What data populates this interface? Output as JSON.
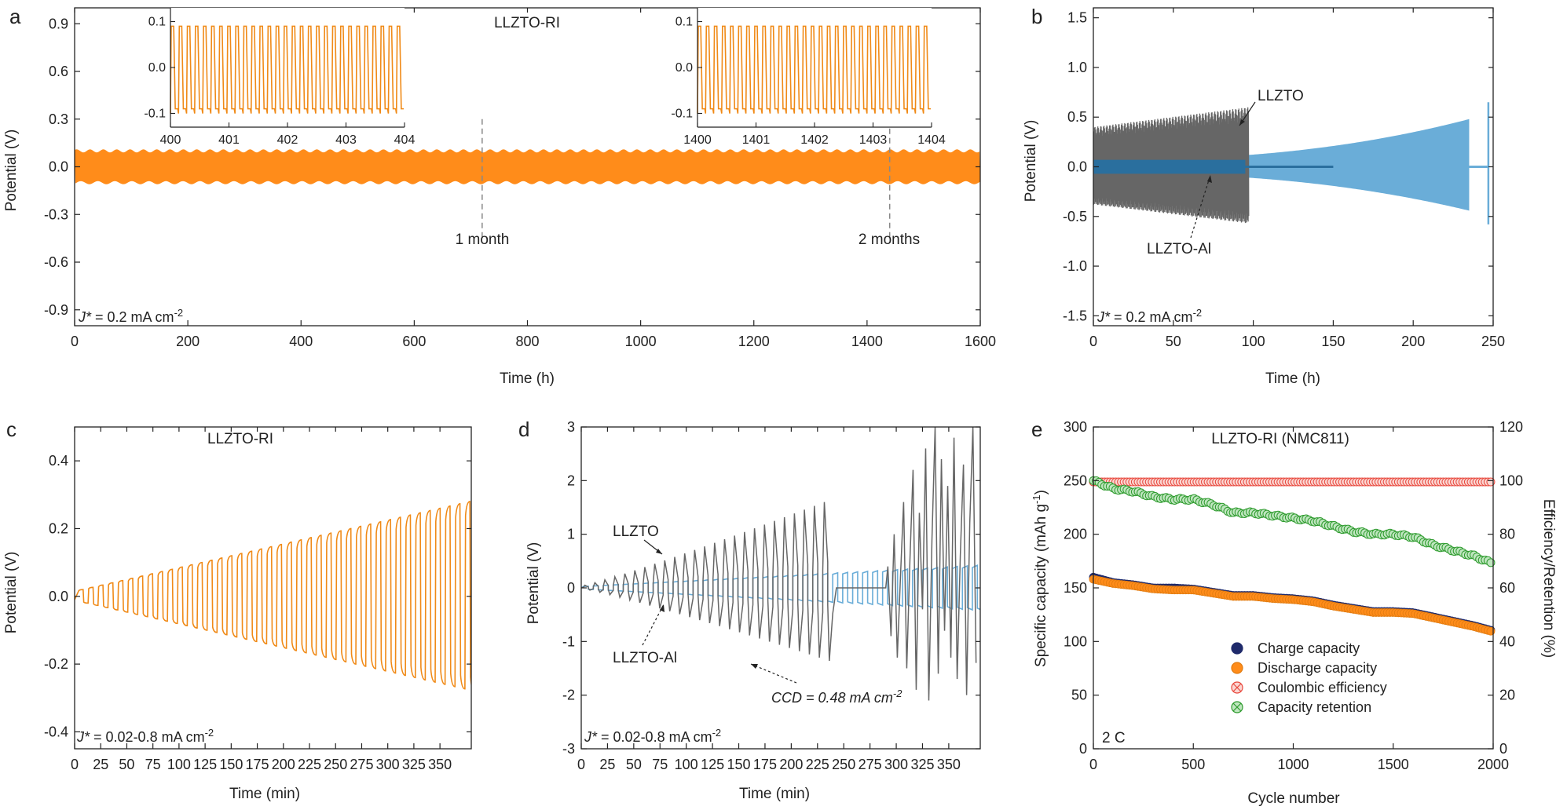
{
  "colors": {
    "orange": "#ff8c1a",
    "orange_trace": "#f08a17",
    "gray": "#666666",
    "dark_blue": "#2a6f9e",
    "light_blue": "#6aadd8",
    "navy": "#1f2a6b",
    "red": "#e8473c",
    "green": "#2e9b2e",
    "dash": "#888888",
    "axis": "#222222"
  },
  "chart_data": [
    {
      "panel": "a",
      "type": "line",
      "title": "LLZTO-RI",
      "xlabel": "Time (h)",
      "ylabel": "Potential (V)",
      "xlim": [
        0,
        1600
      ],
      "ylim": [
        -1.0,
        1.0
      ],
      "xticks": [
        "0",
        "200",
        "400",
        "600",
        "800",
        "1000",
        "1200",
        "1400",
        "1600"
      ],
      "yticks": [
        "-0.9",
        "-0.6",
        "-0.3",
        "0.0",
        "0.3",
        "0.6",
        "0.9"
      ],
      "series": [
        {
          "envelope_upper": 0.1,
          "envelope_lower": -0.1,
          "x_range": [
            0,
            1600
          ]
        }
      ],
      "annotations": [
        "1 month",
        "2 months",
        "J* = 0.2 mA cm⁻²"
      ],
      "marker_lines_x": [
        720,
        1440
      ],
      "insets": [
        {
          "xlim": [
            400,
            404
          ],
          "ylim": [
            -0.13,
            0.13
          ],
          "xticks": [
            "400",
            "401",
            "402",
            "403",
            "404"
          ],
          "yticks": [
            "0.1",
            "0.0",
            "-0.1"
          ],
          "amplitude": 0.09,
          "cycles": 29
        },
        {
          "xlim": [
            1400,
            1404
          ],
          "ylim": [
            -0.13,
            0.13
          ],
          "xticks": [
            "1400",
            "1401",
            "1402",
            "1403",
            "1404"
          ],
          "yticks": [
            "0.1",
            "0.0",
            "-0.1"
          ],
          "amplitude": 0.09,
          "cycles": 29
        }
      ]
    },
    {
      "panel": "b",
      "type": "line",
      "xlabel": "Time (h)",
      "ylabel": "Potential (V)",
      "xlim": [
        0,
        250
      ],
      "ylim": [
        -1.6,
        1.6
      ],
      "xticks": [
        "0",
        "50",
        "100",
        "150",
        "200",
        "250"
      ],
      "yticks": [
        "-1.5",
        "-1.0",
        "-0.5",
        "0.0",
        "0.5",
        "1.0",
        "1.5"
      ],
      "series": [
        {
          "label": "LLZTO",
          "x_end": 97,
          "amplitude_start": 0.4,
          "amplitude_end": 0.6
        },
        {
          "label": "LLZTO-Al",
          "x_end": 150,
          "amplitude": 0.07
        },
        {
          "x_range": [
            0,
            250
          ],
          "amplitude_start": 0.07,
          "amplitude_end": 0.48,
          "spike": 0.65
        }
      ],
      "annotations": [
        "LLZTO",
        "LLZTO-Al",
        "J* = 0.2 mA cm⁻²"
      ]
    },
    {
      "panel": "c",
      "type": "line",
      "title": "LLZTO-RI",
      "xlabel": "Time (min)",
      "ylabel": "Potential (V)",
      "xlim": [
        0,
        380
      ],
      "ylim": [
        -0.45,
        0.5
      ],
      "xticks": [
        "0",
        "25",
        "50",
        "75",
        "100",
        "125",
        "150",
        "175",
        "200",
        "225",
        "250",
        "275",
        "300",
        "325",
        "350"
      ],
      "yticks": [
        "-0.4",
        "-0.2",
        "0.0",
        "0.2",
        "0.4"
      ],
      "series": [
        {
          "cycles": 40,
          "amplitude_start": 0.02,
          "amplitude_end": 0.28
        }
      ],
      "annotations": [
        "J* = 0.02-0.8 mA cm⁻²"
      ]
    },
    {
      "panel": "d",
      "type": "line",
      "xlabel": "Time (min)",
      "ylabel": "Potential (V)",
      "xlim": [
        0,
        380
      ],
      "ylim": [
        -3,
        3
      ],
      "xticks": [
        "0",
        "25",
        "50",
        "75",
        "100",
        "125",
        "150",
        "175",
        "200",
        "225",
        "250",
        "275",
        "300",
        "325",
        "350"
      ],
      "yticks": [
        "-3",
        "-2",
        "-1",
        "0",
        "1",
        "2",
        "3"
      ],
      "series": [
        {
          "label": "LLZTO",
          "amplitude_start": 0.05,
          "amplitude_at_240": 1.6,
          "short_circuit_after": 240
        },
        {
          "label": "LLZTO-Al",
          "amplitude_start": 0.03,
          "amplitude_end": 0.42
        }
      ],
      "annotations": [
        "LLZTO",
        "LLZTO-Al",
        "CCD = 0.48 mA cm⁻²",
        "J* = 0.02-0.8 mA cm⁻²"
      ]
    },
    {
      "panel": "e",
      "type": "scatter",
      "title": "LLZTO-RI (NMC811)",
      "xlabel": "Cycle number",
      "ylabel": "Specific capacity (mAh g⁻¹)",
      "ylabel_right": "Efficiency/Retention (%)",
      "xlim": [
        0,
        2000
      ],
      "ylim": [
        0,
        300
      ],
      "ylim_right": [
        0,
        120
      ],
      "xticks": [
        "0",
        "500",
        "1000",
        "1500",
        "2000"
      ],
      "yticks": [
        "0",
        "50",
        "100",
        "150",
        "200",
        "250",
        "300"
      ],
      "yticks_right": [
        "0",
        "20",
        "40",
        "60",
        "80",
        "100",
        "120"
      ],
      "legend_position": "bottom-right",
      "series": [
        {
          "name": "Charge capacity",
          "axis": "left",
          "x": [
            0,
            100,
            200,
            300,
            400,
            500,
            600,
            700,
            800,
            900,
            1000,
            1100,
            1200,
            1300,
            1400,
            1500,
            1600,
            1700,
            1800,
            1900,
            2000
          ],
          "values": [
            160,
            155,
            153,
            150,
            150,
            149,
            146,
            143,
            143,
            141,
            140,
            138,
            134,
            131,
            128,
            128,
            127,
            123,
            119,
            115,
            110
          ]
        },
        {
          "name": "Discharge capacity",
          "axis": "left",
          "x": [
            0,
            100,
            200,
            300,
            400,
            500,
            600,
            700,
            800,
            900,
            1000,
            1100,
            1200,
            1300,
            1400,
            1500,
            1600,
            1700,
            1800,
            1900,
            2000
          ],
          "values": [
            158,
            154,
            152,
            149,
            148,
            148,
            145,
            142,
            142,
            140,
            139,
            137,
            133,
            130,
            127,
            127,
            126,
            122,
            118,
            114,
            109
          ]
        },
        {
          "name": "Coulombic efficiency",
          "axis": "right",
          "x": [
            0,
            2000
          ],
          "values": [
            99.5,
            99.5
          ]
        },
        {
          "name": "Capacity retention",
          "axis": "right",
          "x": [
            0,
            100,
            200,
            300,
            400,
            500,
            600,
            700,
            800,
            900,
            1000,
            1100,
            1200,
            1300,
            1400,
            1500,
            1600,
            1700,
            1800,
            1900,
            2000
          ],
          "values": [
            100,
            97,
            96,
            94,
            93,
            93,
            91,
            88,
            88,
            87,
            86,
            85,
            83,
            81,
            80,
            80,
            79,
            76,
            74,
            72,
            69
          ]
        }
      ],
      "annotations": [
        "2 C"
      ]
    }
  ],
  "panels": {
    "a": {
      "letter": "a",
      "title": "LLZTO-RI",
      "xlabel": "Time (h)",
      "ylabel": "Potential (V)",
      "note_j": "J*",
      "note_rest": " = 0.2 mA cm",
      "note_sup": "-2",
      "month1": "1 month",
      "month2": "2 months"
    },
    "b": {
      "letter": "b",
      "xlabel": "Time (h)",
      "ylabel": "Potential (V)",
      "label_llzto": "LLZTO",
      "label_al": "LLZTO-Al",
      "note_j": "J*",
      "note_rest": " = 0.2 mA cm",
      "note_sup": "-2"
    },
    "c": {
      "letter": "c",
      "title": "LLZTO-RI",
      "xlabel": "Time (min)",
      "ylabel": "Potential (V)",
      "note_j": "J*",
      "note_rest": " = 0.02-0.8 mA cm",
      "note_sup": "-2"
    },
    "d": {
      "letter": "d",
      "xlabel": "Time (min)",
      "ylabel": "Potential (V)",
      "label_llzto": "LLZTO",
      "label_al": "LLZTO-Al",
      "ccd_main": "CCD = 0.48 mA cm",
      "ccd_sup": "-2",
      "note_j": "J*",
      "note_rest": " = 0.02-0.8 mA cm",
      "note_sup": "-2"
    },
    "e": {
      "letter": "e",
      "title": "LLZTO-RI (NMC811)",
      "xlabel": "Cycle number",
      "ylabel_main": "Specific capacity (mAh g",
      "ylabel_sup": "-1",
      "ylabel_end": ")",
      "ylabel_right": "Efficiency/Retention (%)",
      "rate": "2 C",
      "legend": [
        "Charge capacity",
        "Discharge capacity",
        "Coulombic efficiency",
        "Capacity retention"
      ]
    }
  }
}
